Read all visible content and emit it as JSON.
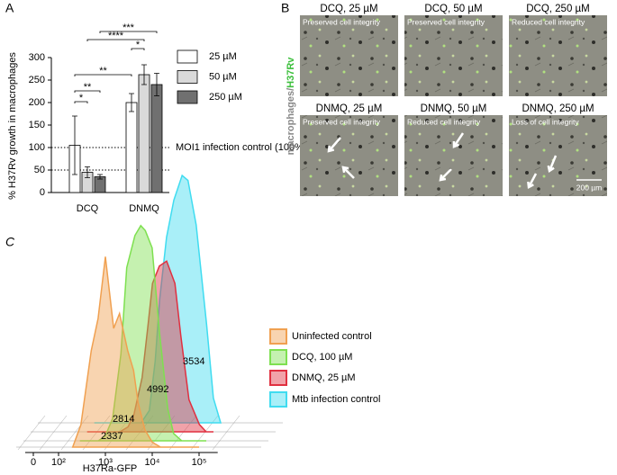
{
  "panel_labels": [
    "A",
    "B",
    "C"
  ],
  "chart_data": [
    {
      "type": "bar",
      "y_label": "% H37Rv growth in macrophages",
      "categories": [
        "DCQ",
        "DNMQ"
      ],
      "series": [
        {
          "name": "25 µM",
          "color": "#ffffff",
          "values": [
            105,
            200
          ],
          "errors": [
            65,
            20
          ]
        },
        {
          "name": "50 µM",
          "color": "#d9d9d9",
          "values": [
            45,
            262
          ],
          "errors": [
            12,
            22
          ]
        },
        {
          "name": "250 µM",
          "color": "#707070",
          "values": [
            35,
            240
          ],
          "errors": [
            5,
            25
          ]
        }
      ],
      "ylim": [
        0,
        300
      ],
      "yticks": [
        0,
        50,
        100,
        150,
        200,
        250,
        300
      ],
      "reference_lines": [
        {
          "value": 100,
          "label": "MOI1 infection control (100%)"
        },
        {
          "value": 50
        }
      ],
      "significance": [
        "*",
        "**",
        "**",
        "****",
        "*",
        "***"
      ]
    },
    {
      "type": "histogram-overlay",
      "x_label": "H37Ra-GFP",
      "xscale": "biexponential",
      "xlim": [
        0,
        250000
      ],
      "xticks": [
        0,
        {
          "value": 100,
          "label": "10²"
        },
        {
          "value": 1000,
          "label": "10³"
        },
        {
          "value": 10000,
          "label": "10⁴"
        },
        {
          "value": 100000,
          "label": "10⁵"
        }
      ],
      "x": [
        200,
        300,
        500,
        700,
        1000,
        1500,
        2000,
        3000,
        4000,
        5000,
        7000,
        10000,
        15000,
        20000,
        30000,
        50000,
        70000,
        100000
      ],
      "series": [
        {
          "name": "Uninfected control",
          "color": "#f0a050",
          "mfi": 2337,
          "values": [
            0,
            9,
            39,
            52,
            77,
            48,
            54,
            39,
            31,
            18,
            7,
            2,
            0,
            0,
            0,
            0,
            0,
            0
          ]
        },
        {
          "name": "DCQ, 100 µM",
          "color": "#7ee050",
          "mfi": 2814,
          "values": [
            0,
            0,
            0,
            2,
            9,
            35,
            70,
            83,
            87,
            85,
            78,
            44,
            13,
            3,
            0,
            0,
            0,
            0
          ]
        },
        {
          "name": "DNMQ, 25 µM",
          "color": "#e03040",
          "mfi": 4992,
          "values": [
            0,
            0,
            0,
            0,
            0,
            2,
            7,
            22,
            43,
            60,
            67,
            69,
            60,
            39,
            13,
            3,
            0,
            0
          ]
        },
        {
          "name": "Mtb infection control",
          "color": "#40dcf0",
          "mfi": 3534,
          "values": [
            0,
            0,
            0,
            0,
            0,
            0,
            0,
            5,
            25,
            50,
            75,
            90,
            100,
            98,
            80,
            40,
            10,
            0
          ]
        }
      ]
    }
  ],
  "microscopy": {
    "y_label_gray": "macrophages/",
    "y_label_green": "H37Rv",
    "panels": [
      {
        "title": "DCQ, 25 µM",
        "note": "Preserved cell integrity"
      },
      {
        "title": "DCQ, 50 µM",
        "note": "Preserved cell integrity"
      },
      {
        "title": "DCQ, 250 µM",
        "note": "Reduced cell integrity"
      },
      {
        "title": "DNMQ, 25 µM",
        "note": "Preserved cell integrity"
      },
      {
        "title": "DNMQ, 50 µM",
        "note": "Reduced cell integrity"
      },
      {
        "title": "DNMQ, 250 µM",
        "note": "Loss of cell integrity"
      }
    ],
    "scale_bar": "200 µm"
  }
}
